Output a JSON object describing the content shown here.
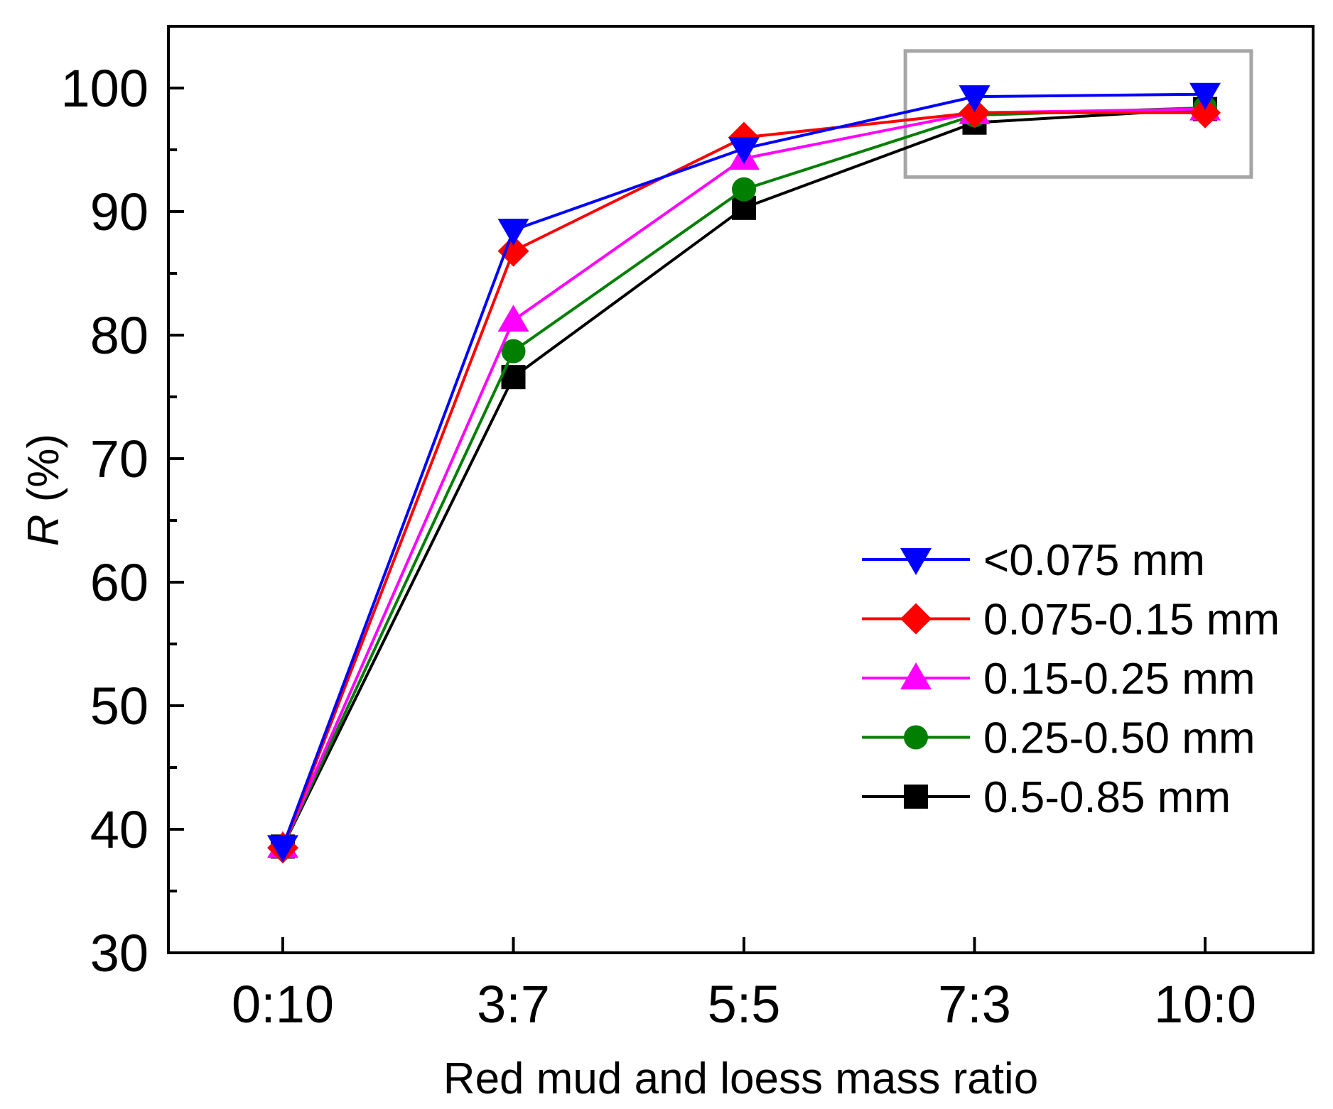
{
  "chart_data": {
    "type": "line",
    "title": "",
    "xlabel": "Red mud and loess mass ratio",
    "ylabel_italic": "R",
    "ylabel_rest": " (%)",
    "categories": [
      "0:10",
      "3:7",
      "5:5",
      "7:3",
      "10:0"
    ],
    "ylim": [
      30,
      105
    ],
    "yticks": [
      30,
      40,
      50,
      60,
      70,
      80,
      90,
      100
    ],
    "legend_position": "lower-right",
    "highlight_box": {
      "x_from": 2.7,
      "x_to": 4.2,
      "y_from": 92.8,
      "y_to": 103
    },
    "series": [
      {
        "name": "<0.075 mm",
        "color": "#0000ff",
        "marker": "triangle-down",
        "values": [
          38.6,
          88.5,
          95.1,
          99.3,
          99.5
        ]
      },
      {
        "name": "0.075-0.15 mm",
        "color": "#ff0000",
        "marker": "diamond",
        "values": [
          38.5,
          86.8,
          96.0,
          98.0,
          98.0
        ]
      },
      {
        "name": "0.15-0.25 mm",
        "color": "#ff00ff",
        "marker": "triangle-up",
        "values": [
          38.6,
          81.2,
          94.3,
          98.0,
          98.3
        ]
      },
      {
        "name": "0.25-0.50 mm",
        "color": "#007f00",
        "marker": "circle",
        "values": [
          38.6,
          78.7,
          91.8,
          97.8,
          98.4
        ]
      },
      {
        "name": "0.5-0.85 mm",
        "color": "#000000",
        "marker": "square",
        "values": [
          38.6,
          76.6,
          90.3,
          97.2,
          98.3
        ]
      }
    ]
  }
}
